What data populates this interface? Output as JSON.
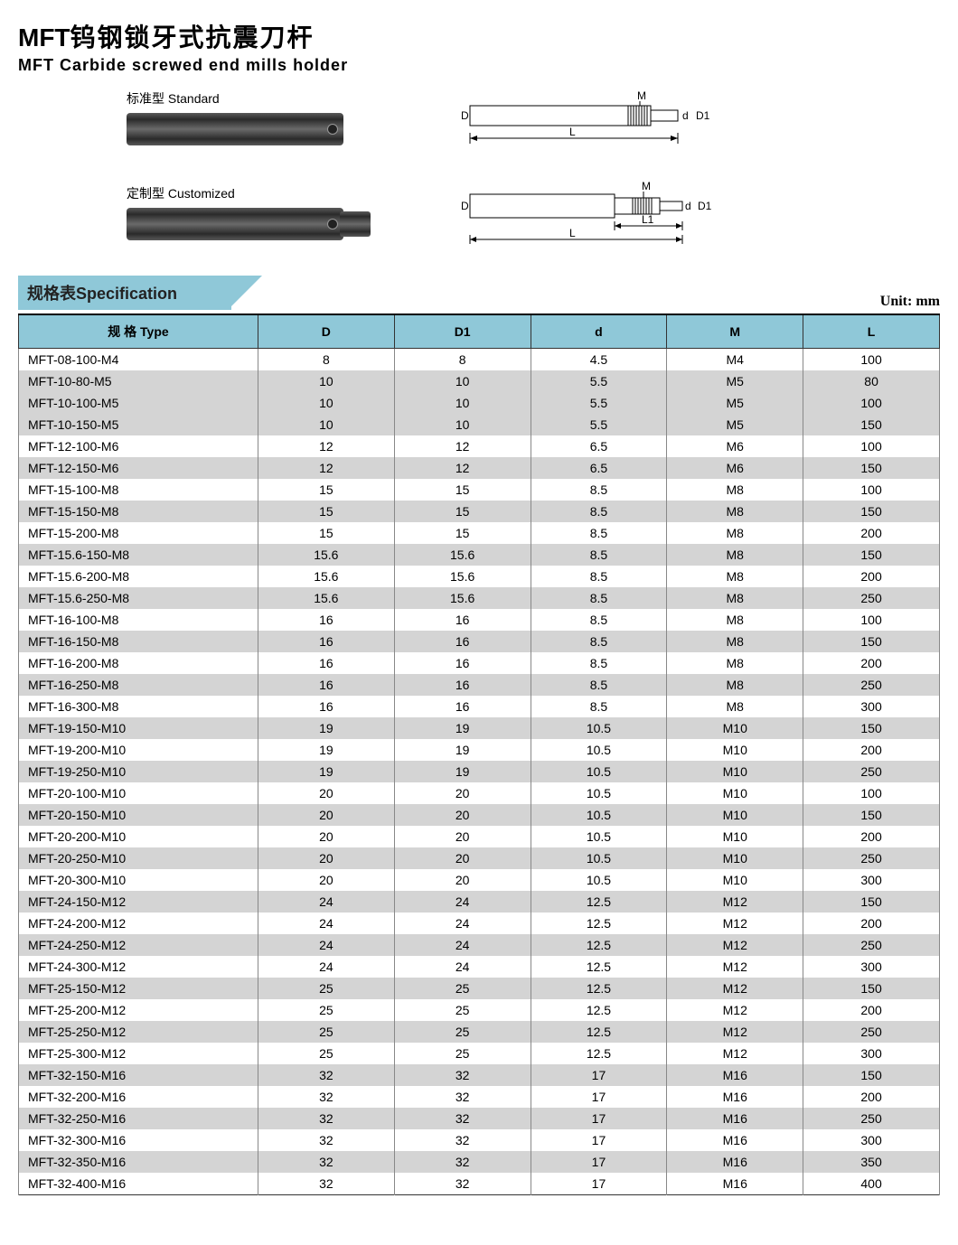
{
  "title": {
    "brand": "MFT",
    "cn": "钨钢锁牙式抗震刀杆",
    "en": "MFT Carbide screwed end mills holder"
  },
  "diagrams": {
    "standard_label": "标准型 Standard",
    "custom_label": "定制型 Customized",
    "dim_labels": {
      "D": "D",
      "D1": "D1",
      "d": "d",
      "M": "M",
      "L": "L",
      "L1": "L1"
    }
  },
  "spec_header": {
    "tab_cn": "规格表",
    "tab_en": "Specification",
    "unit": "Unit: mm"
  },
  "table": {
    "columns": [
      "规 格 Type",
      "D",
      "D1",
      "d",
      "M",
      "L"
    ],
    "col_widths": [
      "26%",
      "14.8%",
      "14.8%",
      "14.8%",
      "14.8%",
      "14.8%"
    ],
    "header_bg": "#8fc8d8",
    "row_shade_bg": "#d4d4d4",
    "row_plain_bg": "#ffffff",
    "border_color": "#333333",
    "font_size": 14,
    "rows": [
      {
        "type": "MFT-08-100-M4",
        "D": "8",
        "D1": "8",
        "d": "4.5",
        "M": "M4",
        "L": "100",
        "shade": false
      },
      {
        "type": "MFT-10-80-M5",
        "D": "10",
        "D1": "10",
        "d": "5.5",
        "M": "M5",
        "L": "80",
        "shade": true
      },
      {
        "type": "MFT-10-100-M5",
        "D": "10",
        "D1": "10",
        "d": "5.5",
        "M": "M5",
        "L": "100",
        "shade": true
      },
      {
        "type": "MFT-10-150-M5",
        "D": "10",
        "D1": "10",
        "d": "5.5",
        "M": "M5",
        "L": "150",
        "shade": true
      },
      {
        "type": "MFT-12-100-M6",
        "D": "12",
        "D1": "12",
        "d": "6.5",
        "M": "M6",
        "L": "100",
        "shade": false
      },
      {
        "type": "MFT-12-150-M6",
        "D": "12",
        "D1": "12",
        "d": "6.5",
        "M": "M6",
        "L": "150",
        "shade": true
      },
      {
        "type": "MFT-15-100-M8",
        "D": "15",
        "D1": "15",
        "d": "8.5",
        "M": "M8",
        "L": "100",
        "shade": false
      },
      {
        "type": "MFT-15-150-M8",
        "D": "15",
        "D1": "15",
        "d": "8.5",
        "M": "M8",
        "L": "150",
        "shade": true
      },
      {
        "type": "MFT-15-200-M8",
        "D": "15",
        "D1": "15",
        "d": "8.5",
        "M": "M8",
        "L": "200",
        "shade": false
      },
      {
        "type": "MFT-15.6-150-M8",
        "D": "15.6",
        "D1": "15.6",
        "d": "8.5",
        "M": "M8",
        "L": "150",
        "shade": true
      },
      {
        "type": "MFT-15.6-200-M8",
        "D": "15.6",
        "D1": "15.6",
        "d": "8.5",
        "M": "M8",
        "L": "200",
        "shade": false
      },
      {
        "type": "MFT-15.6-250-M8",
        "D": "15.6",
        "D1": "15.6",
        "d": "8.5",
        "M": "M8",
        "L": "250",
        "shade": true
      },
      {
        "type": "MFT-16-100-M8",
        "D": "16",
        "D1": "16",
        "d": "8.5",
        "M": "M8",
        "L": "100",
        "shade": false
      },
      {
        "type": "MFT-16-150-M8",
        "D": "16",
        "D1": "16",
        "d": "8.5",
        "M": "M8",
        "L": "150",
        "shade": true
      },
      {
        "type": "MFT-16-200-M8",
        "D": "16",
        "D1": "16",
        "d": "8.5",
        "M": "M8",
        "L": "200",
        "shade": false
      },
      {
        "type": "MFT-16-250-M8",
        "D": "16",
        "D1": "16",
        "d": "8.5",
        "M": "M8",
        "L": "250",
        "shade": true
      },
      {
        "type": "MFT-16-300-M8",
        "D": "16",
        "D1": "16",
        "d": "8.5",
        "M": "M8",
        "L": "300",
        "shade": false
      },
      {
        "type": "MFT-19-150-M10",
        "D": "19",
        "D1": "19",
        "d": "10.5",
        "M": "M10",
        "L": "150",
        "shade": true
      },
      {
        "type": "MFT-19-200-M10",
        "D": "19",
        "D1": "19",
        "d": "10.5",
        "M": "M10",
        "L": "200",
        "shade": false
      },
      {
        "type": "MFT-19-250-M10",
        "D": "19",
        "D1": "19",
        "d": "10.5",
        "M": "M10",
        "L": "250",
        "shade": true
      },
      {
        "type": "MFT-20-100-M10",
        "D": "20",
        "D1": "20",
        "d": "10.5",
        "M": "M10",
        "L": "100",
        "shade": false
      },
      {
        "type": "MFT-20-150-M10",
        "D": "20",
        "D1": "20",
        "d": "10.5",
        "M": "M10",
        "L": "150",
        "shade": true
      },
      {
        "type": "MFT-20-200-M10",
        "D": "20",
        "D1": "20",
        "d": "10.5",
        "M": "M10",
        "L": "200",
        "shade": false
      },
      {
        "type": "MFT-20-250-M10",
        "D": "20",
        "D1": "20",
        "d": "10.5",
        "M": "M10",
        "L": "250",
        "shade": true
      },
      {
        "type": "MFT-20-300-M10",
        "D": "20",
        "D1": "20",
        "d": "10.5",
        "M": "M10",
        "L": "300",
        "shade": false
      },
      {
        "type": "MFT-24-150-M12",
        "D": "24",
        "D1": "24",
        "d": "12.5",
        "M": "M12",
        "L": "150",
        "shade": true
      },
      {
        "type": "MFT-24-200-M12",
        "D": "24",
        "D1": "24",
        "d": "12.5",
        "M": "M12",
        "L": "200",
        "shade": false
      },
      {
        "type": "MFT-24-250-M12",
        "D": "24",
        "D1": "24",
        "d": "12.5",
        "M": "M12",
        "L": "250",
        "shade": true
      },
      {
        "type": "MFT-24-300-M12",
        "D": "24",
        "D1": "24",
        "d": "12.5",
        "M": "M12",
        "L": "300",
        "shade": false
      },
      {
        "type": "MFT-25-150-M12",
        "D": "25",
        "D1": "25",
        "d": "12.5",
        "M": "M12",
        "L": "150",
        "shade": true
      },
      {
        "type": "MFT-25-200-M12",
        "D": "25",
        "D1": "25",
        "d": "12.5",
        "M": "M12",
        "L": "200",
        "shade": false
      },
      {
        "type": "MFT-25-250-M12",
        "D": "25",
        "D1": "25",
        "d": "12.5",
        "M": "M12",
        "L": "250",
        "shade": true
      },
      {
        "type": "MFT-25-300-M12",
        "D": "25",
        "D1": "25",
        "d": "12.5",
        "M": "M12",
        "L": "300",
        "shade": false
      },
      {
        "type": "MFT-32-150-M16",
        "D": "32",
        "D1": "32",
        "d": "17",
        "M": "M16",
        "L": "150",
        "shade": true
      },
      {
        "type": "MFT-32-200-M16",
        "D": "32",
        "D1": "32",
        "d": "17",
        "M": "M16",
        "L": "200",
        "shade": false
      },
      {
        "type": "MFT-32-250-M16",
        "D": "32",
        "D1": "32",
        "d": "17",
        "M": "M16",
        "L": "250",
        "shade": true
      },
      {
        "type": "MFT-32-300-M16",
        "D": "32",
        "D1": "32",
        "d": "17",
        "M": "M16",
        "L": "300",
        "shade": false
      },
      {
        "type": "MFT-32-350-M16",
        "D": "32",
        "D1": "32",
        "d": "17",
        "M": "M16",
        "L": "350",
        "shade": true
      },
      {
        "type": "MFT-32-400-M16",
        "D": "32",
        "D1": "32",
        "d": "17",
        "M": "M16",
        "L": "400",
        "shade": false
      }
    ]
  },
  "colors": {
    "accent": "#8fc8d8",
    "shade": "#d4d4d4",
    "border": "#333333",
    "text": "#000000"
  }
}
